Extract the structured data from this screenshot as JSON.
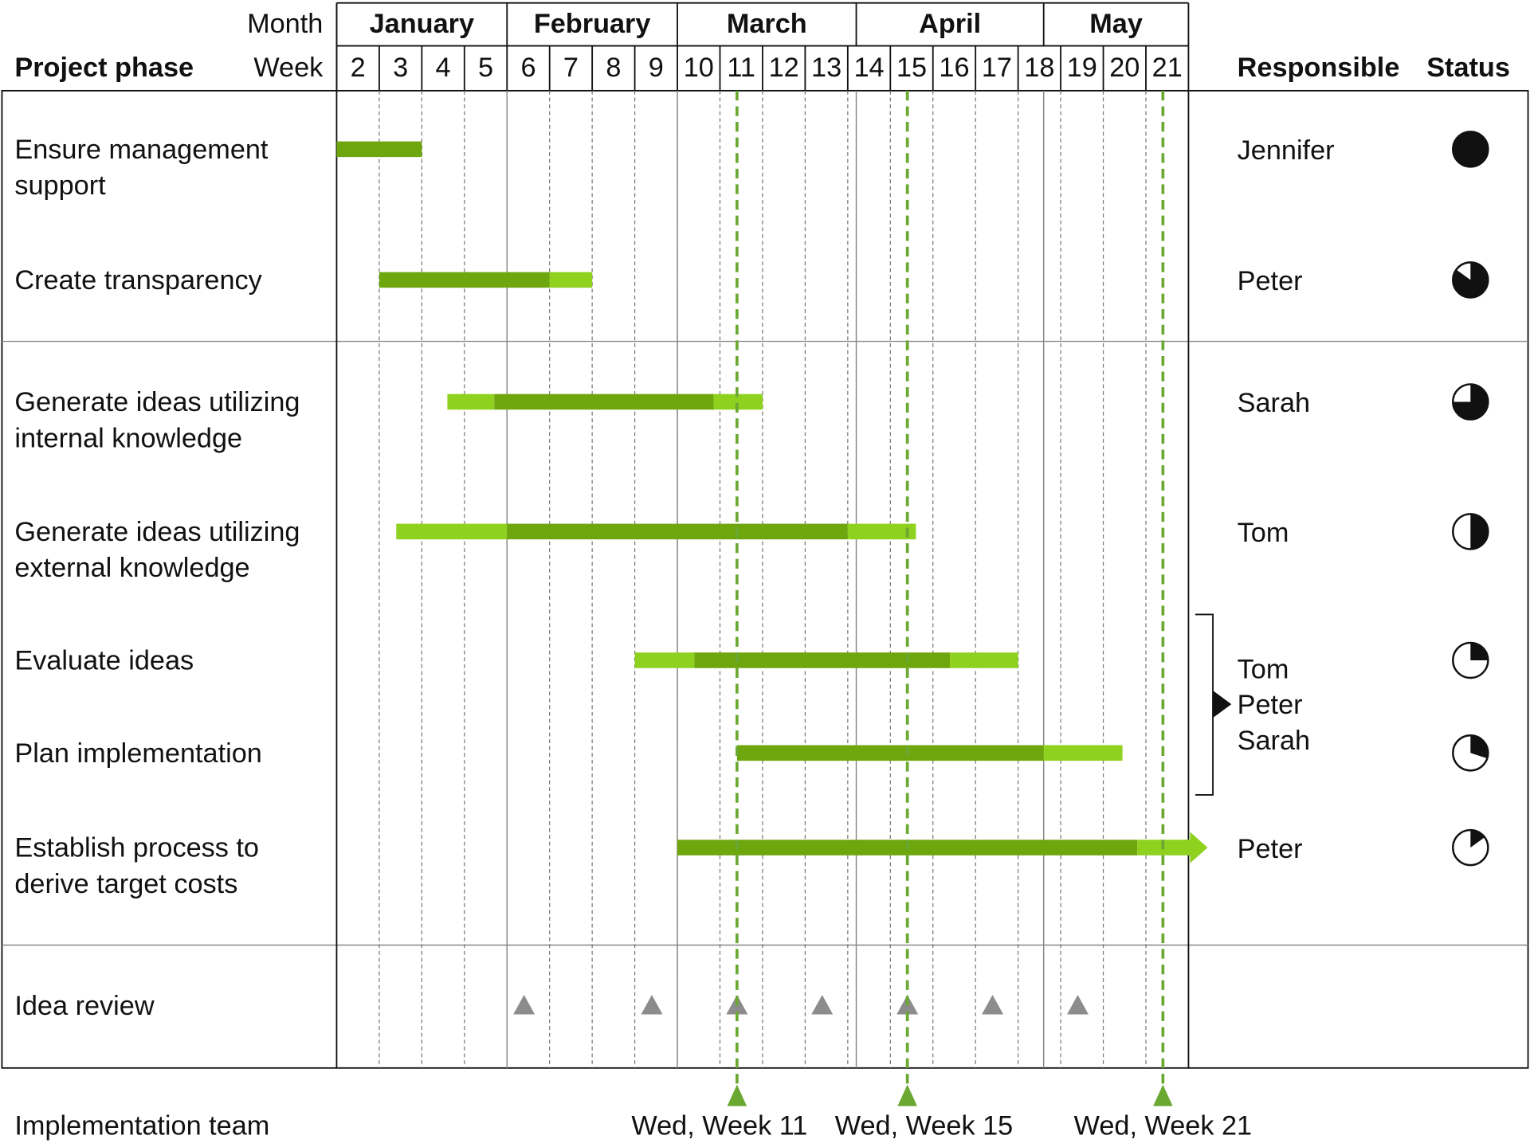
{
  "header": {
    "month_label": "Month",
    "week_label": "Week",
    "phase_label": "Project phase",
    "responsible_label": "Responsible",
    "status_label": "Status"
  },
  "chart_data": {
    "type": "gantt",
    "xlim": [
      2,
      22
    ],
    "months": [
      {
        "label": "January",
        "start": 2,
        "end": 6
      },
      {
        "label": "February",
        "start": 6,
        "end": 10
      },
      {
        "label": "March",
        "start": 10,
        "end": 14.2
      },
      {
        "label": "April",
        "start": 14.2,
        "end": 18.6
      },
      {
        "label": "May",
        "start": 18.6,
        "end": 22
      }
    ],
    "weeks": [
      2,
      3,
      4,
      5,
      6,
      7,
      8,
      9,
      10,
      11,
      12,
      13,
      14,
      15,
      16,
      17,
      18,
      19,
      20,
      21
    ],
    "tasks": [
      {
        "name": [
          "Ensure management",
          "support"
        ],
        "segments": [
          {
            "start": 2,
            "end": 4,
            "color": "#6ea60e"
          }
        ],
        "responsible": "Jennifer",
        "status": 100
      },
      {
        "name": [
          "Create transparency"
        ],
        "segments": [
          {
            "start": 3,
            "end": 7,
            "color": "#6ea60e"
          },
          {
            "start": 7,
            "end": 8,
            "color": "#8fd11f"
          }
        ],
        "responsible": "Peter",
        "status": 85
      },
      {
        "name": [
          "Generate ideas utilizing",
          "internal knowledge"
        ],
        "segments": [
          {
            "start": 4.6,
            "end": 5.7,
            "color": "#8fd11f"
          },
          {
            "start": 5.7,
            "end": 10.85,
            "color": "#6ea60e"
          },
          {
            "start": 10.85,
            "end": 12,
            "color": "#8fd11f"
          }
        ],
        "responsible": "Sarah",
        "status": 75
      },
      {
        "name": [
          "Generate ideas utilizing",
          "external knowledge"
        ],
        "segments": [
          {
            "start": 3.4,
            "end": 6,
            "color": "#8fd11f"
          },
          {
            "start": 6,
            "end": 14,
            "color": "#6ea60e"
          },
          {
            "start": 14,
            "end": 15.6,
            "color": "#8fd11f"
          }
        ],
        "responsible": "Tom",
        "status": 50
      },
      {
        "name": [
          "Evaluate ideas"
        ],
        "segments": [
          {
            "start": 9,
            "end": 10.4,
            "color": "#8fd11f"
          },
          {
            "start": 10.4,
            "end": 16.4,
            "color": "#6ea60e"
          },
          {
            "start": 16.4,
            "end": 18,
            "color": "#8fd11f"
          }
        ],
        "status": 25
      },
      {
        "name": [
          "Plan implementation"
        ],
        "segments": [
          {
            "start": 11.4,
            "end": 18.6,
            "color": "#6ea60e"
          },
          {
            "start": 18.6,
            "end": 20.45,
            "color": "#8fd11f"
          }
        ],
        "status": 30
      },
      {
        "name": [
          "Establish process to",
          "derive target costs"
        ],
        "segments": [
          {
            "start": 10,
            "end": 20.8,
            "color": "#6ea60e"
          },
          {
            "start": 20.8,
            "end": 22.45,
            "color": "#8fd11f"
          }
        ],
        "arrow": true,
        "responsible": "Peter",
        "status": 15
      }
    ],
    "responsible_group": {
      "tasks": [
        4,
        5
      ],
      "names": [
        "Tom",
        "Peter",
        "Sarah"
      ]
    },
    "milestones": {
      "name": "Idea review",
      "color": "#8c8c8c",
      "weeks": [
        6.4,
        9.4,
        11.4,
        13.4,
        15.4,
        17.4,
        19.4
      ]
    },
    "deadlines": {
      "name": "Implementation team",
      "color": "#6aa832",
      "items": [
        {
          "week": 11.4,
          "label": "Wed, Week 11"
        },
        {
          "week": 15.4,
          "label": "Wed, Week 15"
        },
        {
          "week": 21.4,
          "label": "Wed, Week 21"
        }
      ]
    }
  }
}
